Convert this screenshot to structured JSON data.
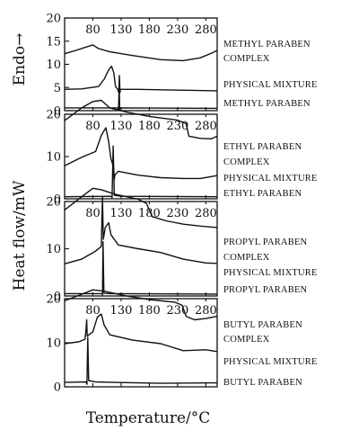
{
  "chart_data": {
    "type": "line",
    "xlabel": "Temperature/°C",
    "ylabel": "Heat flow/mW",
    "ylabel_top": "Endo→",
    "xlim": [
      30,
      300
    ],
    "ylim": [
      0,
      20
    ],
    "xticks": [
      80,
      130,
      180,
      230,
      280
    ],
    "panels": [
      {
        "yticks": [
          0,
          5,
          10,
          15,
          20
        ],
        "series": [
          {
            "name": "METHYL PARABEN COMPLEX",
            "label_lines": [
              "METHYL PARABEN",
              "COMPLEX"
            ],
            "points": [
              [
                30,
                12.3
              ],
              [
                50,
                13.0
              ],
              [
                70,
                13.8
              ],
              [
                80,
                14.2
              ],
              [
                90,
                13.4
              ],
              [
                110,
                12.7
              ],
              [
                150,
                11.9
              ],
              [
                200,
                11.0
              ],
              [
                240,
                10.8
              ],
              [
                270,
                11.4
              ],
              [
                290,
                12.4
              ],
              [
                300,
                13.0
              ]
            ]
          },
          {
            "name": "PHYSICAL MIXTURE",
            "label_lines": [
              "PHYSICAL MIXTURE"
            ],
            "points": [
              [
                30,
                4.6
              ],
              [
                60,
                4.7
              ],
              [
                90,
                5.2
              ],
              [
                100,
                6.8
              ],
              [
                108,
                8.8
              ],
              [
                113,
                9.6
              ],
              [
                117,
                8.2
              ],
              [
                120,
                5.2
              ],
              [
                124,
                4.6
              ],
              [
                126,
                3.9
              ],
              [
                127,
                7.6
              ],
              [
                128,
                3.9
              ],
              [
                129,
                4.6
              ],
              [
                160,
                4.6
              ],
              [
                200,
                4.5
              ],
              [
                300,
                4.3
              ]
            ]
          },
          {
            "name": "METHYL PARABEN",
            "label_lines": [
              "METHYL PARABEN"
            ],
            "points": [
              [
                30,
                0.6
              ],
              [
                124,
                0.6
              ],
              [
                125.5,
                0.1
              ],
              [
                126.5,
                5.6
              ],
              [
                127.5,
                0.3
              ],
              [
                129,
                0.6
              ],
              [
                300,
                0.5
              ]
            ]
          }
        ]
      },
      {
        "yticks": [
          0,
          10,
          20
        ],
        "series": [
          {
            "name": "ETHYL PARABEN COMPLEX",
            "label_lines": [
              "ETHYL PARABEN",
              "COMPLEX"
            ],
            "points": [
              [
                30,
                18.5
              ],
              [
                60,
                21.5
              ],
              [
                80,
                23.0
              ],
              [
                95,
                23.3
              ],
              [
                110,
                21.5
              ],
              [
                140,
                20.5
              ],
              [
                180,
                19.5
              ],
              [
                230,
                18.6
              ],
              [
                245,
                17.8
              ],
              [
                250,
                14.8
              ],
              [
                270,
                14.3
              ],
              [
                290,
                14.2
              ],
              [
                300,
                14.8
              ]
            ]
          },
          {
            "name": "PHYSICAL MIXTURE",
            "label_lines": [
              "PHYSICAL MIXTURE"
            ],
            "points": [
              [
                30,
                7.8
              ],
              [
                60,
                9.8
              ],
              [
                85,
                11.2
              ],
              [
                95,
                15.0
              ],
              [
                103,
                16.8
              ],
              [
                108,
                13.5
              ],
              [
                112,
                9.5
              ],
              [
                116,
                7.8
              ],
              [
                117,
                6.8
              ],
              [
                118,
                4.6
              ],
              [
                119,
                5.6
              ],
              [
                125,
                6.5
              ],
              [
                160,
                5.6
              ],
              [
                200,
                5.0
              ],
              [
                240,
                4.8
              ],
              [
                270,
                4.8
              ],
              [
                300,
                5.5
              ]
            ]
          },
          {
            "name": "ETHYL PARABEN",
            "label_lines": [
              "ETHYL PARABEN"
            ],
            "points": [
              [
                30,
                0.5
              ],
              [
                112,
                0.6
              ],
              [
                114,
                0.3
              ],
              [
                116,
                12.5
              ],
              [
                118,
                0.8
              ],
              [
                130,
                0.6
              ],
              [
                300,
                0.5
              ]
            ]
          }
        ]
      },
      {
        "yticks": [
          0,
          10,
          20
        ],
        "series": [
          {
            "name": "PROPYL PARABEN COMPLEX",
            "label_lines": [
              "PROPYL PARABEN",
              "COMPLEX"
            ],
            "points": [
              [
                30,
                18.2
              ],
              [
                60,
                21.0
              ],
              [
                80,
                22.8
              ],
              [
                95,
                22.5
              ],
              [
                120,
                21.5
              ],
              [
                160,
                20.5
              ],
              [
                175,
                19.6
              ],
              [
                185,
                16.8
              ],
              [
                210,
                15.9
              ],
              [
                240,
                15.2
              ],
              [
                270,
                14.8
              ],
              [
                300,
                14.5
              ]
            ]
          },
          {
            "name": "PHYSICAL MIXTURE",
            "label_lines": [
              "PHYSICAL MIXTURE"
            ],
            "points": [
              [
                30,
                6.8
              ],
              [
                60,
                7.8
              ],
              [
                85,
                9.5
              ],
              [
                95,
                10.5
              ],
              [
                97,
                21.0
              ],
              [
                98.5,
                12.0
              ],
              [
                102,
                14.5
              ],
              [
                108,
                15.5
              ],
              [
                112,
                13.0
              ],
              [
                125,
                10.8
              ],
              [
                160,
                10.0
              ],
              [
                200,
                9.2
              ],
              [
                240,
                7.8
              ],
              [
                280,
                7.0
              ],
              [
                300,
                6.9
              ]
            ]
          },
          {
            "name": "PROPYL PARABEN",
            "label_lines": [
              "PROPYL PARABEN"
            ],
            "points": [
              [
                30,
                0.5
              ],
              [
                96,
                0.5
              ],
              [
                97,
                0.2
              ],
              [
                98,
                11.5
              ],
              [
                99.5,
                0.6
              ],
              [
                110,
                0.5
              ],
              [
                300,
                0.4
              ]
            ]
          }
        ]
      },
      {
        "yticks": [
          0,
          10,
          20
        ],
        "series": [
          {
            "name": "BUTYL PARABEN COMPLEX",
            "label_lines": [
              "BUTYL PARABEN",
              "COMPLEX"
            ],
            "points": [
              [
                30,
                19.5
              ],
              [
                60,
                21.0
              ],
              [
                80,
                22.0
              ],
              [
                100,
                21.7
              ],
              [
                140,
                20.6
              ],
              [
                180,
                19.8
              ],
              [
                225,
                19.2
              ],
              [
                238,
                18.5
              ],
              [
                245,
                16.0
              ],
              [
                260,
                15.2
              ],
              [
                280,
                15.5
              ],
              [
                300,
                16.0
              ]
            ]
          },
          {
            "name": "PHYSICAL MIXTURE",
            "label_lines": [
              "PHYSICAL MIXTURE"
            ],
            "points": [
              [
                30,
                9.8
              ],
              [
                55,
                10.2
              ],
              [
                66,
                10.8
              ],
              [
                68,
                13.0
              ],
              [
                69,
                15.2
              ],
              [
                70,
                11.5
              ],
              [
                80,
                12.5
              ],
              [
                88,
                15.8
              ],
              [
                95,
                16.5
              ],
              [
                100,
                14.0
              ],
              [
                110,
                11.8
              ],
              [
                150,
                10.6
              ],
              [
                200,
                9.8
              ],
              [
                240,
                8.2
              ],
              [
                280,
                8.4
              ],
              [
                300,
                8.0
              ]
            ]
          },
          {
            "name": "BUTYL PARABEN",
            "label_lines": [
              "BUTYL PARABEN"
            ],
            "points": [
              [
                30,
                1.0
              ],
              [
                68,
                1.1
              ],
              [
                69.5,
                0.6
              ],
              [
                71,
                11.2
              ],
              [
                72.5,
                1.4
              ],
              [
                85,
                1.1
              ],
              [
                200,
                0.8
              ],
              [
                300,
                0.9
              ]
            ]
          }
        ]
      }
    ]
  }
}
